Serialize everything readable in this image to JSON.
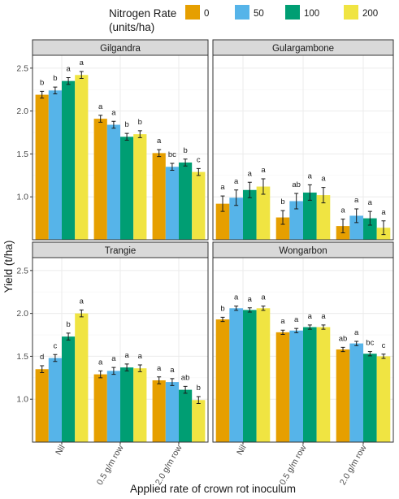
{
  "legend": {
    "title_line1": "Nitrogen Rate",
    "title_line2": "(units/ha)",
    "items": [
      {
        "label": "0",
        "color": "#E69F00"
      },
      {
        "label": "50",
        "color": "#56B4E9"
      },
      {
        "label": "100",
        "color": "#009E73"
      },
      {
        "label": "200",
        "color": "#F0E442"
      }
    ]
  },
  "chart_data": {
    "type": "bar",
    "ylabel": "Yield (t/ha)",
    "xlabel": "Applied rate of crown rot inoculum",
    "categories": [
      "Nil",
      "0.5 g/m row",
      "2.0 g/m row"
    ],
    "ylim": [
      0.5,
      2.65
    ],
    "y_ticks": [
      1.0,
      1.5,
      2.0,
      2.5
    ],
    "y_tick_labels": [
      "1.0",
      "1.5",
      "2.0",
      "2.5"
    ],
    "grid": true,
    "legend_position": "top",
    "panels": [
      {
        "name": "Gilgandra",
        "series": [
          {
            "name": "0",
            "values": [
              2.19,
              1.91,
              1.51
            ],
            "errors": [
              0.04,
              0.04,
              0.04
            ],
            "letters": [
              "b",
              "a",
              "a"
            ]
          },
          {
            "name": "50",
            "values": [
              2.24,
              1.84,
              1.35
            ],
            "errors": [
              0.04,
              0.04,
              0.04
            ],
            "letters": [
              "b",
              "a",
              "bc"
            ]
          },
          {
            "name": "100",
            "values": [
              2.35,
              1.7,
              1.4
            ],
            "errors": [
              0.04,
              0.04,
              0.04
            ],
            "letters": [
              "a",
              "b",
              "b"
            ]
          },
          {
            "name": "200",
            "values": [
              2.42,
              1.73,
              1.29
            ],
            "errors": [
              0.04,
              0.04,
              0.04
            ],
            "letters": [
              "a",
              "b",
              "c"
            ]
          }
        ]
      },
      {
        "name": "Gulargambone",
        "series": [
          {
            "name": "0",
            "values": [
              0.92,
              0.76,
              0.66
            ],
            "errors": [
              0.09,
              0.08,
              0.08
            ],
            "letters": [
              "a",
              "b",
              "a"
            ]
          },
          {
            "name": "50",
            "values": [
              0.99,
              0.95,
              0.78
            ],
            "errors": [
              0.09,
              0.09,
              0.08
            ],
            "letters": [
              "a",
              "ab",
              "a"
            ]
          },
          {
            "name": "100",
            "values": [
              1.08,
              1.05,
              0.75
            ],
            "errors": [
              0.09,
              0.09,
              0.08
            ],
            "letters": [
              "a",
              "a",
              "a"
            ]
          },
          {
            "name": "200",
            "values": [
              1.12,
              1.02,
              0.64
            ],
            "errors": [
              0.09,
              0.09,
              0.08
            ],
            "letters": [
              "a",
              "a",
              "a"
            ]
          }
        ]
      },
      {
        "name": "Trangie",
        "series": [
          {
            "name": "0",
            "values": [
              1.35,
              1.29,
              1.22
            ],
            "errors": [
              0.04,
              0.04,
              0.04
            ],
            "letters": [
              "d",
              "a",
              "a"
            ]
          },
          {
            "name": "50",
            "values": [
              1.48,
              1.33,
              1.2
            ],
            "errors": [
              0.04,
              0.04,
              0.04
            ],
            "letters": [
              "c",
              "a",
              "a"
            ]
          },
          {
            "name": "100",
            "values": [
              1.73,
              1.37,
              1.11
            ],
            "errors": [
              0.04,
              0.04,
              0.04
            ],
            "letters": [
              "b",
              "a",
              "ab"
            ]
          },
          {
            "name": "200",
            "values": [
              2.0,
              1.36,
              0.99
            ],
            "errors": [
              0.04,
              0.04,
              0.04
            ],
            "letters": [
              "a",
              "a",
              "b"
            ]
          }
        ]
      },
      {
        "name": "Wongarbon",
        "series": [
          {
            "name": "0",
            "values": [
              1.93,
              1.78,
              1.58
            ],
            "errors": [
              0.025,
              0.025,
              0.025
            ],
            "letters": [
              "b",
              "a",
              "ab"
            ]
          },
          {
            "name": "50",
            "values": [
              2.06,
              1.8,
              1.65
            ],
            "errors": [
              0.025,
              0.025,
              0.025
            ],
            "letters": [
              "a",
              "a",
              "a"
            ]
          },
          {
            "name": "100",
            "values": [
              2.04,
              1.84,
              1.53
            ],
            "errors": [
              0.025,
              0.025,
              0.025
            ],
            "letters": [
              "a",
              "a",
              "bc"
            ]
          },
          {
            "name": "200",
            "values": [
              2.06,
              1.84,
              1.5
            ],
            "errors": [
              0.025,
              0.025,
              0.025
            ],
            "letters": [
              "a",
              "a",
              "c"
            ]
          }
        ]
      }
    ]
  }
}
